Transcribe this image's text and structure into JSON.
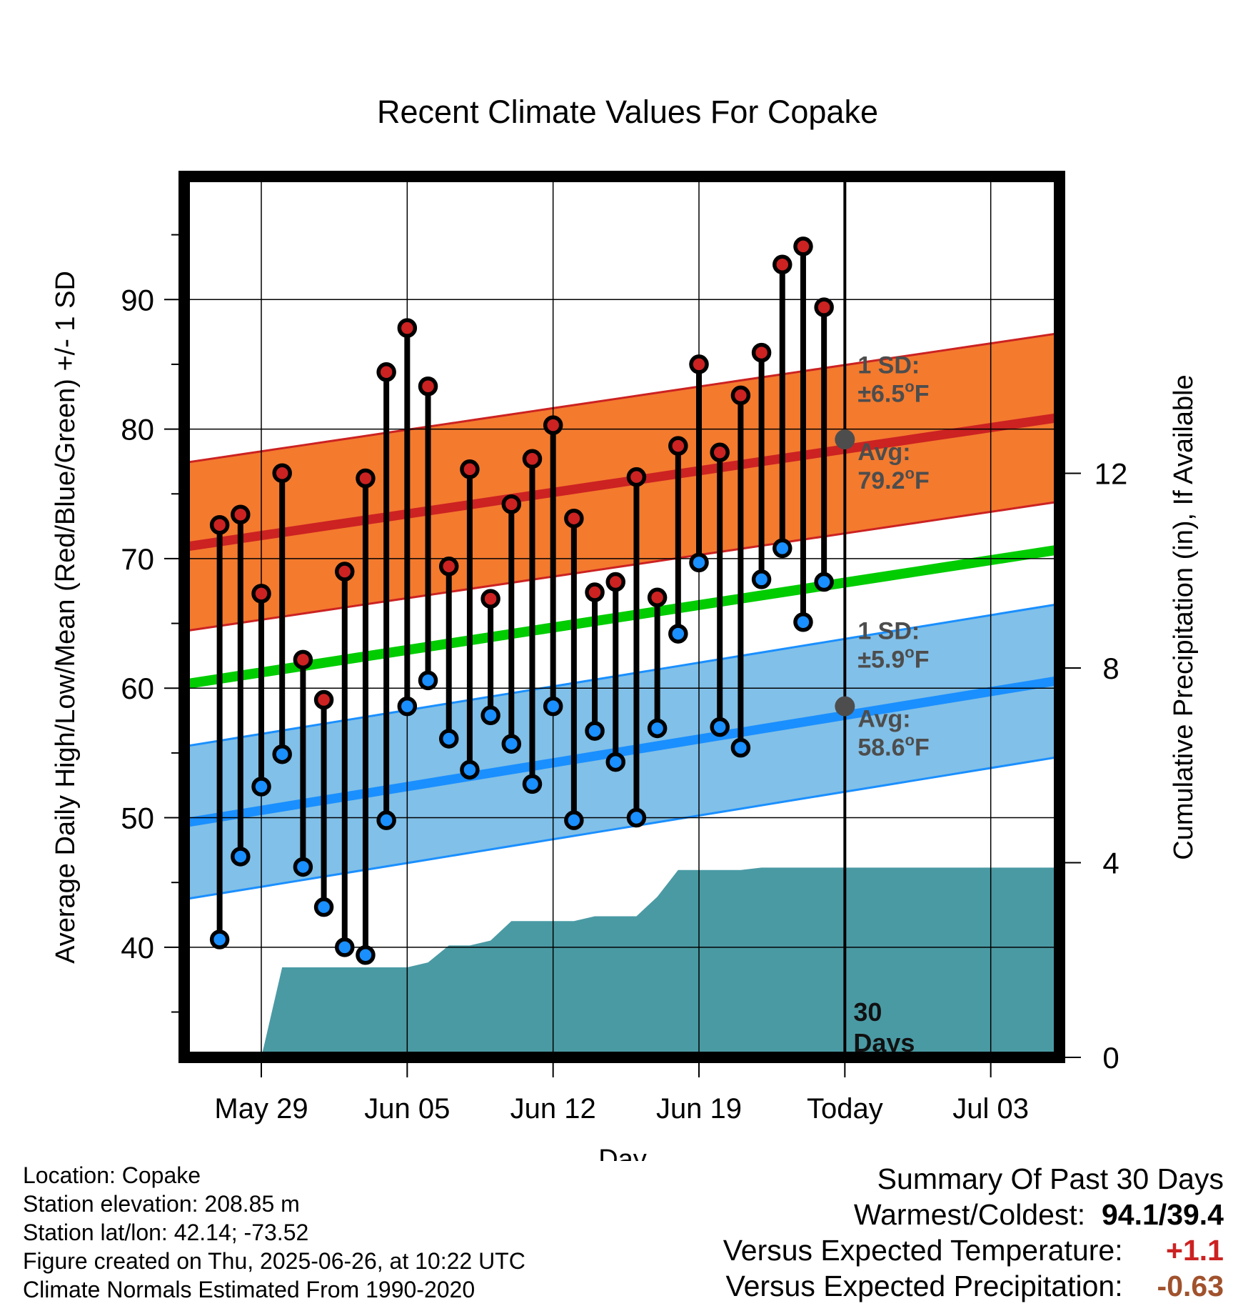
{
  "chart_data": {
    "type": "line",
    "title": "Recent Climate Values For Copake",
    "xlabel": "Day",
    "ylabel": "Average Daily High/Low/Mean (Red/Blue/Green) +/- 1 SD",
    "y2label": "Cumulative Precipitation (in), If Available",
    "xlim": [
      -3.7,
      38.3
    ],
    "ylim": [
      31.5,
      99.5
    ],
    "y2lim": [
      0,
      18.1
    ],
    "x_ticks": [
      {
        "x": 0,
        "label": "May 29"
      },
      {
        "x": 7,
        "label": "Jun 05"
      },
      {
        "x": 14,
        "label": "Jun 12"
      },
      {
        "x": 21,
        "label": "Jun 19"
      },
      {
        "x": 28,
        "label": "Today"
      },
      {
        "x": 35,
        "label": "Jul 03"
      }
    ],
    "y_ticks": [
      40,
      50,
      60,
      70,
      80,
      90
    ],
    "y2_ticks": [
      0,
      4,
      8,
      12
    ],
    "grid": true,
    "today_x": 28,
    "colors": {
      "high": "#cc2222",
      "low": "#1a8fff",
      "mean": "#00cc00",
      "high_band": "#f47a2e",
      "low_band": "#81c0e8",
      "precip": "#4a9aa4",
      "annotation": "#4d4d4d"
    },
    "daily": {
      "x": [
        -2,
        -1,
        0,
        1,
        2,
        3,
        4,
        5,
        6,
        7,
        8,
        9,
        10,
        11,
        12,
        13,
        14,
        15,
        16,
        17,
        18,
        19,
        20,
        21,
        22,
        23,
        24,
        25,
        26,
        27
      ],
      "highs": [
        72.6,
        73.4,
        67.3,
        76.6,
        62.2,
        59.1,
        69.0,
        76.2,
        84.4,
        87.8,
        83.3,
        69.4,
        76.9,
        66.9,
        74.2,
        77.7,
        80.3,
        73.1,
        67.4,
        68.2,
        76.3,
        67.0,
        78.7,
        85.0,
        78.2,
        82.6,
        85.9,
        92.7,
        94.1,
        89.4
      ],
      "lows": [
        40.6,
        47.0,
        52.4,
        54.9,
        46.2,
        43.1,
        40.0,
        39.4,
        49.8,
        58.6,
        60.6,
        56.1,
        53.7,
        57.9,
        55.7,
        52.6,
        58.6,
        49.8,
        56.7,
        54.3,
        50.0,
        56.9,
        64.2,
        69.7,
        57.0,
        55.4,
        68.4,
        70.8,
        65.1,
        68.2
      ]
    },
    "normals": {
      "x": [
        -3.7,
        38.3
      ],
      "high_avg": [
        70.9,
        80.9
      ],
      "high_sd": 6.5,
      "low_avg": [
        49.6,
        60.6
      ],
      "low_sd": 5.9,
      "mean_avg": [
        60.3,
        70.7
      ]
    },
    "precip": {
      "x": [
        -2,
        -1,
        0,
        1,
        2,
        3,
        4,
        5,
        6,
        7,
        8,
        9,
        10,
        11,
        12,
        13,
        14,
        15,
        16,
        17,
        18,
        19,
        20,
        21,
        22,
        23,
        24,
        25,
        26,
        27,
        28,
        38.3
      ],
      "cumulative": [
        0,
        0,
        0,
        1.85,
        1.85,
        1.85,
        1.85,
        1.85,
        1.85,
        1.85,
        1.95,
        2.3,
        2.3,
        2.4,
        2.8,
        2.8,
        2.8,
        2.8,
        2.9,
        2.9,
        2.9,
        3.3,
        3.85,
        3.85,
        3.85,
        3.85,
        3.9,
        3.9,
        3.9,
        3.9,
        3.9,
        3.9
      ],
      "start_x": -1.2
    },
    "annotations": [
      {
        "line1": "1 SD:",
        "line2": "±6.5",
        "unit": "F"
      },
      {
        "line1": "Avg:",
        "line2": "79.2",
        "unit": "F"
      },
      {
        "line1": "1 SD:",
        "line2": "±5.9",
        "unit": "F"
      },
      {
        "line1": "Avg:",
        "line2": "58.6",
        "unit": "F"
      }
    ],
    "today_markers": [
      79.2,
      58.6
    ],
    "days_label": [
      "30",
      "Days"
    ]
  },
  "footer": {
    "location": "Location: Copake",
    "elevation": "Station elevation: 208.85 m",
    "latlon": "Station lat/lon: 42.14; -73.52",
    "created": "Figure created on Thu, 2025-06-26, at 10:22 UTC",
    "normals": "Climate Normals Estimated From 1990-2020"
  },
  "summary": {
    "title": "Summary Of Past 30 Days",
    "warmest_label": "Warmest/Coldest:",
    "warmest_value": "94.1/39.4",
    "temp_label": "Versus Expected Temperature:",
    "temp_value": "+1.1",
    "precip_label": "Versus Expected Precipitation:",
    "precip_value": "-0.63"
  }
}
